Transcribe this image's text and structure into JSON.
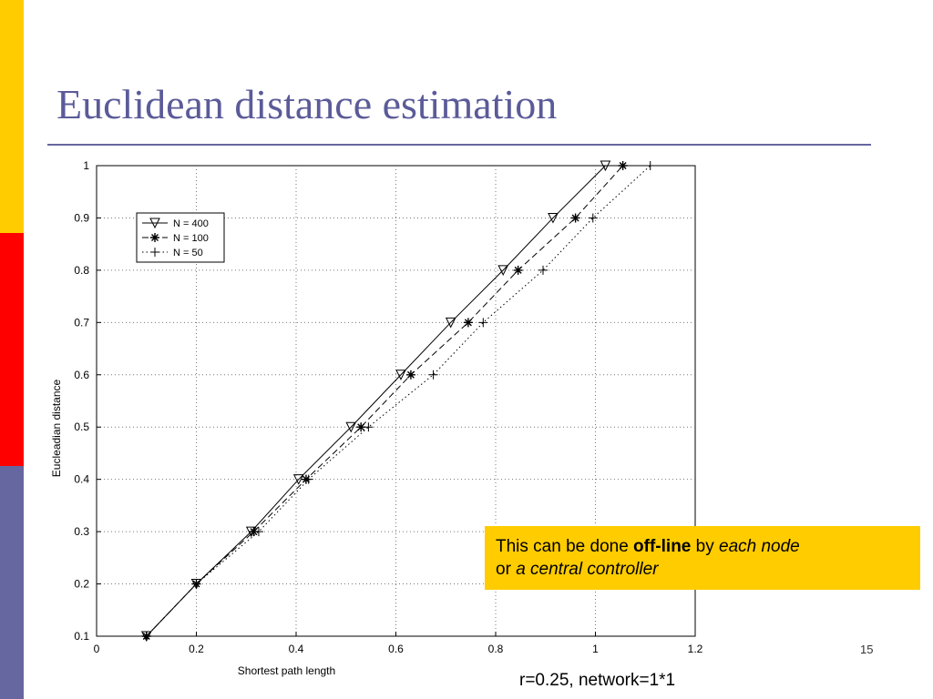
{
  "slide": {
    "title": "Euclidean distance estimation",
    "callout": {
      "prefix": "This can be done ",
      "bold": "off-line",
      "mid": " by ",
      "italic1": "each node",
      "line2_prefix": "or ",
      "italic2": "a central controller"
    },
    "caption": "r=0.25, network=1*1",
    "page_number": "15"
  },
  "chart_data": {
    "type": "line",
    "xlabel": "Shortest path length",
    "ylabel": "Eucleadian distance",
    "xlim": [
      0,
      1.2
    ],
    "ylim": [
      0.1,
      1
    ],
    "xticks": [
      "0",
      "0.2",
      "0.4",
      "0.6",
      "0.8",
      "1",
      "1.2"
    ],
    "yticks": [
      "0.1",
      "0.2",
      "0.3",
      "0.4",
      "0.5",
      "0.6",
      "0.7",
      "0.8",
      "0.9",
      "1"
    ],
    "grid": true,
    "legend_position": "top-left",
    "series": [
      {
        "name": "N = 400",
        "line_style": "solid",
        "marker": "triangle-down",
        "x": [
          0.1,
          0.2,
          0.31,
          0.405,
          0.51,
          0.61,
          0.71,
          0.815,
          0.915,
          1.02
        ],
        "y": [
          0.1,
          0.2,
          0.3,
          0.4,
          0.5,
          0.6,
          0.7,
          0.8,
          0.9,
          1.0
        ]
      },
      {
        "name": "N = 100",
        "line_style": "dashed",
        "marker": "asterisk",
        "x": [
          0.1,
          0.2,
          0.315,
          0.42,
          0.53,
          0.63,
          0.745,
          0.845,
          0.96,
          1.055
        ],
        "y": [
          0.1,
          0.2,
          0.3,
          0.4,
          0.5,
          0.6,
          0.7,
          0.8,
          0.9,
          1.0
        ]
      },
      {
        "name": "N = 50",
        "line_style": "dotted",
        "marker": "plus",
        "x": [
          0.1,
          0.2,
          0.325,
          0.425,
          0.545,
          0.675,
          0.775,
          0.895,
          0.995,
          1.11
        ],
        "y": [
          0.1,
          0.2,
          0.3,
          0.4,
          0.5,
          0.6,
          0.7,
          0.8,
          0.9,
          1.0
        ]
      }
    ]
  }
}
